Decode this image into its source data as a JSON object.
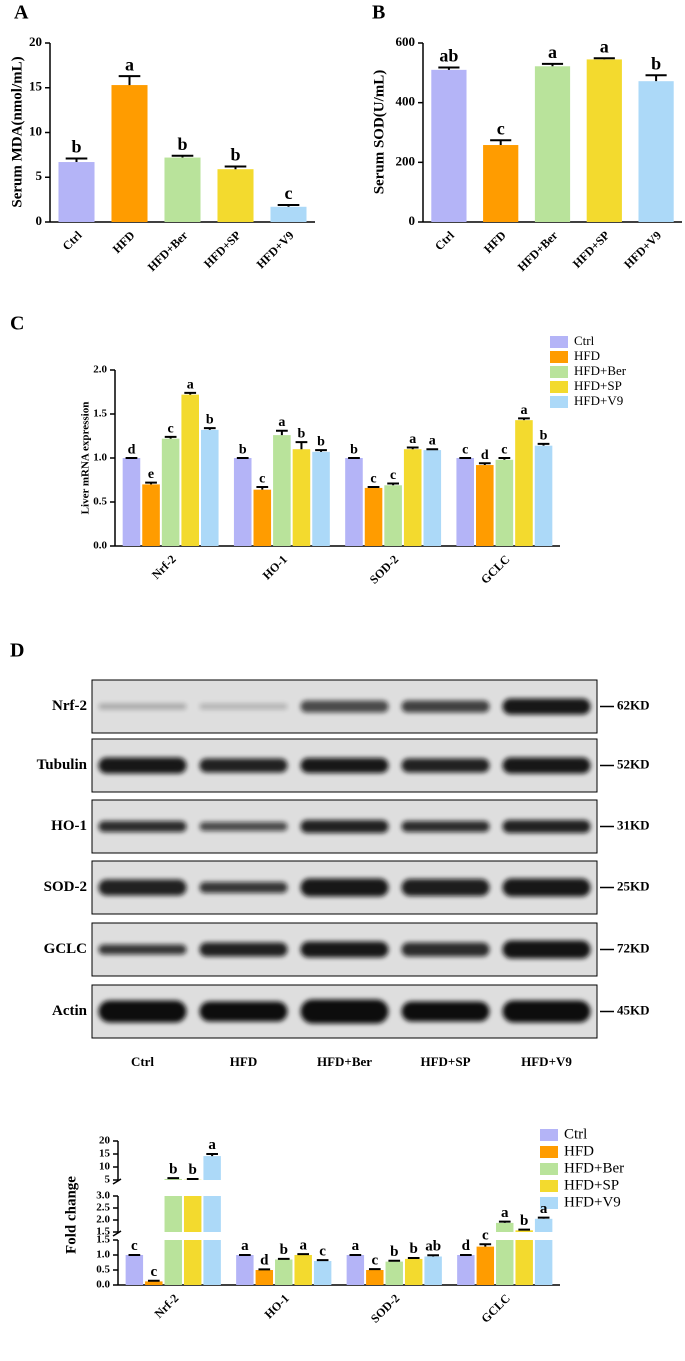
{
  "chart_data": [
    {
      "type": "bar",
      "panel_label": "A",
      "y_label": "Serum MDA(nmol/mL)",
      "categories": [
        "Ctrl",
        "HFD",
        "HFD+Ber",
        "HFD+SP",
        "HFD+V9"
      ],
      "values": [
        6.7,
        15.3,
        7.2,
        5.9,
        1.7
      ],
      "errors": [
        0.4,
        1.0,
        0.2,
        0.3,
        0.2
      ],
      "letters": [
        "b",
        "a",
        "b",
        "b",
        "c"
      ],
      "colors": [
        "#b4b4f7",
        "#ff9c00",
        "#b9e39b",
        "#f3da2e",
        "#acd9f8"
      ],
      "ylim": [
        0,
        20
      ],
      "yticks": [
        0,
        5,
        10,
        15,
        20
      ]
    },
    {
      "type": "bar",
      "panel_label": "B",
      "y_label": "Serum SOD(U/mL)",
      "categories": [
        "Ctrl",
        "HFD",
        "HFD+Ber",
        "HFD+SP",
        "HFD+V9"
      ],
      "values": [
        510,
        258,
        522,
        545,
        472
      ],
      "errors": [
        8,
        16,
        8,
        4,
        20
      ],
      "letters": [
        "ab",
        "c",
        "a",
        "a",
        "b"
      ],
      "colors": [
        "#b4b4f7",
        "#ff9c00",
        "#b9e39b",
        "#f3da2e",
        "#acd9f8"
      ],
      "ylim": [
        0,
        600
      ],
      "yticks": [
        0,
        200,
        400,
        600
      ]
    },
    {
      "type": "grouped_bar",
      "panel_label": "C",
      "y_label": "Liver mRNA expression",
      "categories": [
        "Nrf-2",
        "HO-1",
        "SOD-2",
        "GCLC"
      ],
      "series": [
        {
          "name": "Ctrl",
          "color": "#b4b4f7",
          "values": [
            1.0,
            1.0,
            1.0,
            1.0
          ],
          "errors": [
            0.0,
            0.0,
            0.0,
            0.0
          ],
          "letters": [
            "d",
            "b",
            "b",
            "c"
          ]
        },
        {
          "name": "HFD",
          "color": "#ff9c00",
          "values": [
            0.7,
            0.64,
            0.66,
            0.92
          ],
          "errors": [
            0.02,
            0.03,
            0.01,
            0.02
          ],
          "letters": [
            "e",
            "c",
            "c",
            "d"
          ]
        },
        {
          "name": "HFD+Ber",
          "color": "#b9e39b",
          "values": [
            1.22,
            1.26,
            0.69,
            0.98
          ],
          "errors": [
            0.02,
            0.05,
            0.02,
            0.02
          ],
          "letters": [
            "c",
            "a",
            "c",
            "c"
          ]
        },
        {
          "name": "HFD+SP",
          "color": "#f3da2e",
          "values": [
            1.72,
            1.1,
            1.1,
            1.43
          ],
          "errors": [
            0.02,
            0.08,
            0.02,
            0.02
          ],
          "letters": [
            "a",
            "b",
            "a",
            "a"
          ]
        },
        {
          "name": "HFD+V9",
          "color": "#acd9f8",
          "values": [
            1.32,
            1.07,
            1.09,
            1.14
          ],
          "errors": [
            0.02,
            0.02,
            0.01,
            0.02
          ],
          "letters": [
            "b",
            "b",
            "a",
            "b"
          ]
        }
      ],
      "ylim": [
        0,
        2
      ],
      "yticks": [
        {
          "value": 0,
          "label": "0.0"
        },
        0.5,
        {
          "value": 1,
          "label": "1.0"
        },
        1.5,
        {
          "value": 2,
          "label": "2.0"
        }
      ],
      "legend": "top-right"
    },
    {
      "type": "broken_bar",
      "y_label": "Fold change",
      "categories": [
        "Nrf-2",
        "HO-1",
        "SOD-2",
        "GCLC"
      ],
      "series": [
        {
          "name": "Ctrl",
          "color": "#b4b4f7",
          "values": [
            1.0,
            1.0,
            1.0,
            1.0
          ],
          "errors": [
            0.0,
            0.0,
            0.0,
            0.0
          ],
          "letters": [
            "c",
            "a",
            "a",
            "d"
          ]
        },
        {
          "name": "HFD",
          "color": "#ff9c00",
          "values": [
            0.12,
            0.5,
            0.5,
            1.28
          ],
          "errors": [
            0.02,
            0.02,
            0.03,
            0.08
          ],
          "letters": [
            "c",
            "d",
            "c",
            "c"
          ]
        },
        {
          "name": "HFD+Ber",
          "color": "#b9e39b",
          "values": [
            5.4,
            0.85,
            0.78,
            1.88
          ],
          "errors": [
            0.3,
            0.02,
            0.03,
            0.05
          ],
          "letters": [
            "b",
            "b",
            "b",
            "a"
          ]
        },
        {
          "name": "HFD+SP",
          "color": "#f3da2e",
          "values": [
            5.1,
            1.0,
            0.87,
            1.57
          ],
          "errors": [
            0.3,
            0.03,
            0.03,
            0.03
          ],
          "letters": [
            "b",
            "a",
            "b",
            "b"
          ]
        },
        {
          "name": "HFD+V9",
          "color": "#acd9f8",
          "values": [
            14.2,
            0.8,
            0.95,
            2.05
          ],
          "errors": [
            0.8,
            0.03,
            0.04,
            0.05
          ],
          "letters": [
            "a",
            "c",
            "ab",
            "a"
          ]
        }
      ],
      "axis_segments": [
        {
          "ylim": [
            0,
            1.5
          ],
          "yticks": [
            {
              "value": 0,
              "label": "0.0"
            },
            0.5,
            {
              "value": 1,
              "label": "1.0"
            },
            1.5
          ]
        },
        {
          "ylim": [
            1.5,
            3
          ],
          "yticks": [
            1.5,
            {
              "value": 2,
              "label": "2.0"
            },
            2.5,
            {
              "value": 3,
              "label": "3.0"
            }
          ]
        },
        {
          "ylim": [
            5,
            20
          ],
          "yticks": [
            5,
            10,
            15,
            20
          ]
        }
      ],
      "legend": "top-right"
    }
  ],
  "blot": {
    "panel_label": "D",
    "proteins": [
      {
        "name": "Nrf-2",
        "size": "62KD"
      },
      {
        "name": "Tubulin",
        "size": "52KD"
      },
      {
        "name": "HO-1",
        "size": "31KD"
      },
      {
        "name": "SOD-2",
        "size": "25KD"
      },
      {
        "name": "GCLC",
        "size": "72KD"
      },
      {
        "name": "Actin",
        "size": "45KD"
      }
    ],
    "lanes": [
      "Ctrl",
      "HFD",
      "HFD+Ber",
      "HFD+SP",
      "HFD+V9"
    ]
  }
}
